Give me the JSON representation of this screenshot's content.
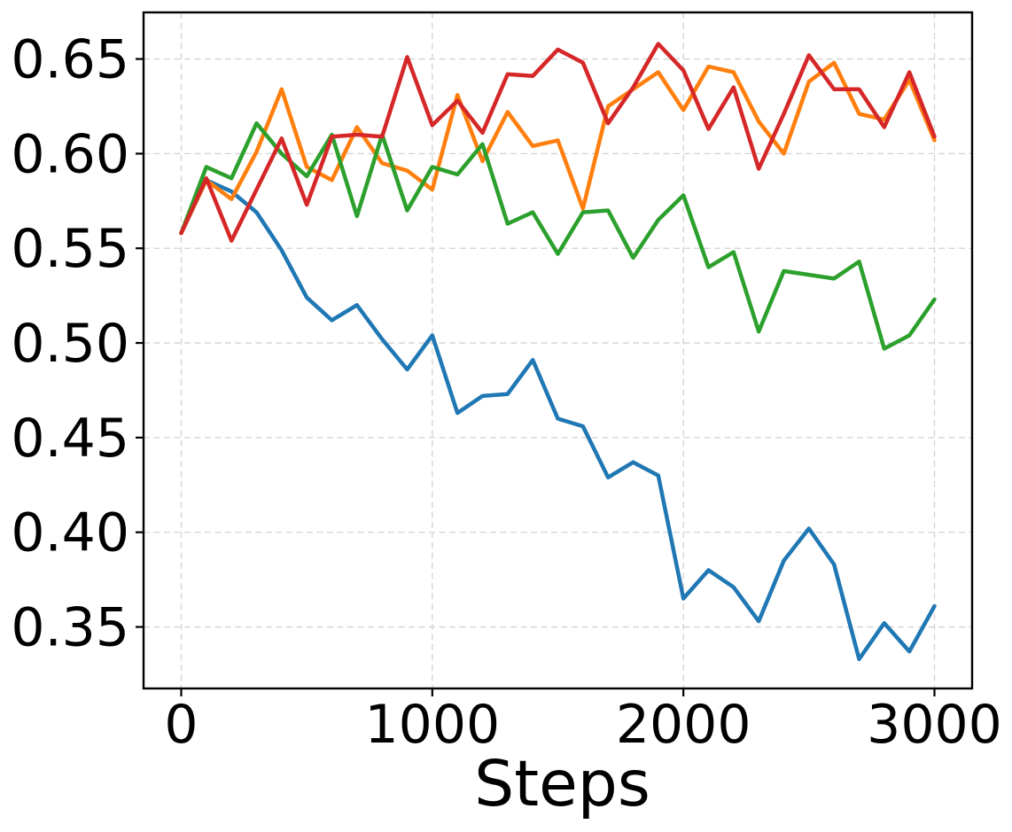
{
  "figure": {
    "background_color": "#ffffff",
    "frame_color": "#000000",
    "grid_color": "#d2d2d2"
  },
  "chart_data": {
    "type": "line",
    "title": "",
    "xlabel": "Steps",
    "ylabel": "",
    "grid": true,
    "grid_style": "dashed",
    "legend": false,
    "xlim": [
      -150,
      3150
    ],
    "ylim": [
      0.3175,
      0.6746
    ],
    "x_ticks": [
      0,
      1000,
      2000,
      3000
    ],
    "x_tick_labels": [
      "0",
      "1000",
      "2000",
      "3000"
    ],
    "y_ticks": [
      0.35,
      0.4,
      0.45,
      0.5,
      0.55,
      0.6,
      0.65
    ],
    "y_tick_labels": [
      "0.35",
      "0.40",
      "0.45",
      "0.50",
      "0.55",
      "0.60",
      "0.65"
    ],
    "x": [
      0,
      100,
      200,
      300,
      400,
      500,
      600,
      700,
      800,
      900,
      1000,
      1100,
      1200,
      1300,
      1400,
      1500,
      1600,
      1700,
      1800,
      1900,
      2000,
      2100,
      2200,
      2300,
      2400,
      2500,
      2600,
      2700,
      2800,
      2900,
      3000
    ],
    "series": [
      {
        "name": "blue",
        "color": "#1f77b4",
        "values": [
          0.558,
          0.586,
          0.58,
          0.569,
          0.549,
          0.524,
          0.512,
          0.52,
          0.502,
          0.486,
          0.504,
          0.463,
          0.472,
          0.473,
          0.491,
          0.46,
          0.456,
          0.429,
          0.437,
          0.43,
          0.365,
          0.38,
          0.371,
          0.353,
          0.385,
          0.402,
          0.383,
          0.333,
          0.352,
          0.337,
          0.361
        ]
      },
      {
        "name": "orange",
        "color": "#ff7f0e",
        "values": [
          0.558,
          0.586,
          0.576,
          0.601,
          0.634,
          0.593,
          0.586,
          0.614,
          0.595,
          0.591,
          0.581,
          0.631,
          0.596,
          0.622,
          0.604,
          0.607,
          0.571,
          0.625,
          0.634,
          0.643,
          0.623,
          0.646,
          0.643,
          0.617,
          0.6,
          0.638,
          0.648,
          0.621,
          0.618,
          0.639,
          0.607
        ]
      },
      {
        "name": "green",
        "color": "#2ca02c",
        "values": [
          0.558,
          0.593,
          0.587,
          0.616,
          0.6,
          0.588,
          0.61,
          0.567,
          0.61,
          0.57,
          0.593,
          0.589,
          0.605,
          0.563,
          0.569,
          0.547,
          0.569,
          0.57,
          0.545,
          0.565,
          0.578,
          0.54,
          0.548,
          0.506,
          0.538,
          0.536,
          0.534,
          0.543,
          0.497,
          0.504,
          0.523
        ]
      },
      {
        "name": "red",
        "color": "#d62728",
        "values": [
          0.558,
          0.587,
          0.554,
          0.581,
          0.608,
          0.573,
          0.609,
          0.61,
          0.609,
          0.651,
          0.615,
          0.628,
          0.611,
          0.642,
          0.641,
          0.655,
          0.648,
          0.616,
          0.635,
          0.658,
          0.644,
          0.613,
          0.635,
          0.592,
          0.621,
          0.652,
          0.634,
          0.634,
          0.614,
          0.643,
          0.609
        ]
      }
    ]
  }
}
